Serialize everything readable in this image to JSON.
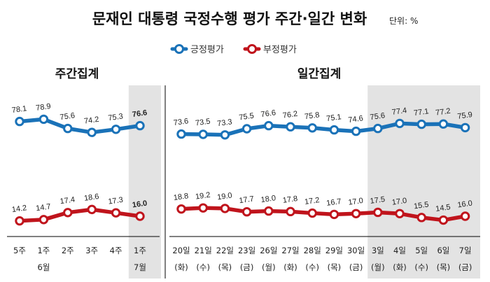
{
  "title": "문재인 대통령 국정수행 평가 주간·일간 변화",
  "unit": "단위: %",
  "colors": {
    "positive": "#1a72b8",
    "negative": "#c0141c",
    "shade": "#e3e3e3",
    "axis": "#000000"
  },
  "chart_data": [
    {
      "type": "line",
      "title": "주간집계",
      "categories": [
        "5주",
        "1주",
        "2주",
        "3주",
        "4주",
        "1주"
      ],
      "category_sublabels": [
        "",
        "6월",
        "",
        "",
        "",
        "7월"
      ],
      "highlight_from_index": 5,
      "series": [
        {
          "name": "긍정평가",
          "values": [
            78.1,
            78.9,
            75.6,
            74.2,
            75.3,
            76.6
          ]
        },
        {
          "name": "부정평가",
          "values": [
            14.2,
            14.7,
            17.4,
            18.6,
            17.3,
            16.0
          ]
        }
      ]
    },
    {
      "type": "line",
      "title": "일간집계",
      "categories": [
        "20일",
        "21일",
        "22일",
        "23일",
        "26일",
        "27일",
        "28일",
        "29일",
        "30일",
        "3일",
        "4일",
        "5일",
        "6일",
        "7일"
      ],
      "category_sublabels": [
        "(화)",
        "(수)",
        "(목)",
        "(금)",
        "(월)",
        "(화)",
        "(수)",
        "(목)",
        "(금)",
        "(월)",
        "(화)",
        "(수)",
        "(목)",
        "(금)"
      ],
      "highlight_from_index": 9,
      "series": [
        {
          "name": "긍정평가",
          "values": [
            73.6,
            73.5,
            73.3,
            75.5,
            76.6,
            76.2,
            75.8,
            75.1,
            74.6,
            75.6,
            77.4,
            77.1,
            77.2,
            75.9
          ]
        },
        {
          "name": "부정평가",
          "values": [
            18.8,
            19.2,
            19.0,
            17.7,
            18.0,
            17.8,
            17.2,
            16.7,
            17.0,
            17.5,
            17.0,
            15.5,
            14.5,
            16.0
          ]
        }
      ]
    }
  ]
}
